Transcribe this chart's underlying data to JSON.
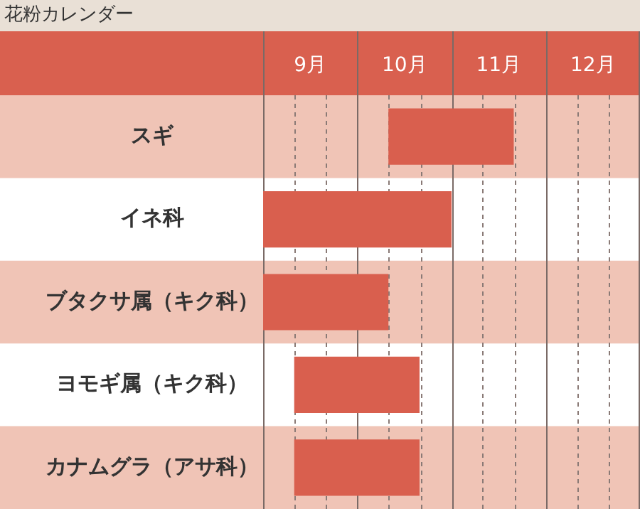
{
  "chart_data": {
    "type": "bar",
    "orientation": "horizontal",
    "title": "花粉カレンダー",
    "categories": [
      "スギ",
      "イネ科",
      "ブタクサ属（キク科）",
      "ヨモギ属（キク科）",
      "カナムグラ（アサ科）"
    ],
    "base": [
      10.33,
      9,
      9,
      9.33,
      9.33
    ],
    "values": [
      1.33,
      2,
      1.33,
      1.33,
      1.33
    ],
    "color": "#d95f4e",
    "xlim": [
      9,
      13
    ],
    "xticks": [
      {
        "value": 9,
        "label": null
      },
      {
        "value": 9.33,
        "label": null
      },
      {
        "value": 9.5,
        "label": "9月"
      },
      {
        "value": 9.67,
        "label": null
      },
      {
        "value": 10,
        "label": null
      },
      {
        "value": 10.33,
        "label": null
      },
      {
        "value": 10.5,
        "label": "10月"
      },
      {
        "value": 10.67,
        "label": null
      },
      {
        "value": 11,
        "label": null
      },
      {
        "value": 11.33,
        "label": null
      },
      {
        "value": 11.5,
        "label": "11月"
      },
      {
        "value": 11.67,
        "label": null
      },
      {
        "value": 12,
        "label": null
      },
      {
        "value": 12.33,
        "label": null
      },
      {
        "value": 12.5,
        "label": "12月"
      },
      {
        "value": 12.67,
        "label": null
      },
      {
        "value": 13,
        "label": null
      }
    ],
    "bands": [
      {
        "axis": "y",
        "from": "スギ",
        "to": "スギ",
        "color": "#f0c4b6"
      },
      {
        "axis": "y",
        "from": "ブタクサ属（キク科）",
        "to": "ブタクサ属（キク科）",
        "color": "#f0c4b6"
      },
      {
        "axis": "y",
        "from": "カナムグラ（アサ科）",
        "to": "カナムグラ（アサ科）",
        "color": "#f0c4b6"
      }
    ],
    "grid": "x",
    "legend": false
  }
}
